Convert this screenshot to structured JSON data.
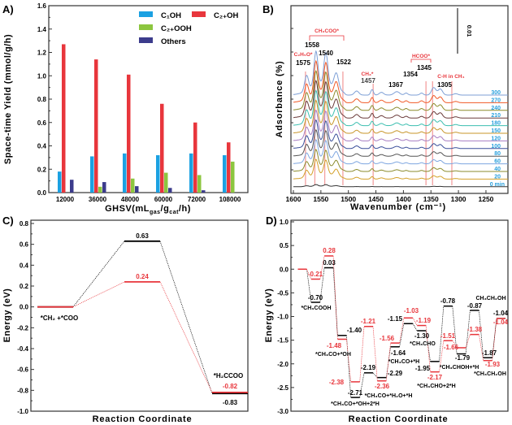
{
  "chart_data": [
    {
      "panel_label": "A)",
      "type": "bar",
      "categories": [
        "12000",
        "36000",
        "48000",
        "60000",
        "72000",
        "108000"
      ],
      "series": [
        {
          "name": "C₁OH",
          "color": "#1ba1e2",
          "values": [
            0.18,
            0.31,
            0.335,
            0.32,
            0.335,
            0.32
          ]
        },
        {
          "name": "C₂₊OH",
          "color": "#e8363c",
          "values": [
            1.27,
            1.14,
            1.01,
            0.76,
            0.6,
            0.43
          ]
        },
        {
          "name": "C₂₊OOH",
          "color": "#8cc63f",
          "values": [
            null,
            0.05,
            0.12,
            0.17,
            0.15,
            0.265
          ]
        },
        {
          "name": "Others",
          "color": "#3c3c8c",
          "values": [
            0.11,
            0.09,
            0.055,
            0.04,
            0.02,
            null
          ]
        }
      ],
      "ylabel": "Space-time Yield (mmol/g/h)",
      "xlabel_parts": [
        {
          "t": "GHSV(mL"
        },
        {
          "t": "gas",
          "sub": true
        },
        {
          "t": "/g"
        },
        {
          "t": "cat",
          "sub": true
        },
        {
          "t": "/h)"
        }
      ],
      "ylim": [
        0,
        1.6
      ],
      "yticks": [
        "0.0",
        "0.2",
        "0.4",
        "0.6",
        "0.8",
        "1.0",
        "1.2",
        "1.4",
        "1.6"
      ],
      "legend": "top-right"
    },
    {
      "panel_label": "B)",
      "type": "line",
      "xlabel": "Wavenumber (cm⁻¹)",
      "ylabel": "Adsorbance (%)",
      "xlim": [
        1600,
        1210
      ],
      "xticks": [
        "1600",
        "1550",
        "1500",
        "1450",
        "1400",
        "1350",
        "1300",
        "1250"
      ],
      "scale_bar": "0.01",
      "series": [
        {
          "name": "300",
          "color": "#7d9fd6"
        },
        {
          "name": "270",
          "color": "#f05a28"
        },
        {
          "name": "240",
          "color": "#8b8b2c"
        },
        {
          "name": "210",
          "color": "#6b3b3b"
        },
        {
          "name": "180",
          "color": "#3dbfb0"
        },
        {
          "name": "150",
          "color": "#c8962a"
        },
        {
          "name": "120",
          "color": "#a67dc2"
        },
        {
          "name": "100",
          "color": "#3a4f9a"
        },
        {
          "name": "80",
          "color": "#555555"
        },
        {
          "name": "60",
          "color": "#7ea6e0"
        },
        {
          "name": "40",
          "color": "#8b8b2c"
        },
        {
          "name": "20",
          "color": "#d4a12a"
        },
        {
          "name": "0 min",
          "color": "#333333"
        }
      ],
      "series_label_color": "#2aa0dd",
      "peak_labels": [
        "1575",
        "1558",
        "1540",
        "1522",
        "1457",
        "1367",
        "1354",
        "1345",
        "1305"
      ],
      "assignments": [
        "C₂H₅O*",
        "CH₃COO*",
        "CH₃*",
        "HCOO*",
        "C-H in CH₄"
      ],
      "annotation_color": "#e8363c"
    },
    {
      "panel_label": "C)",
      "type": "line",
      "ylabel": "Energy (eV)",
      "xlabel": "Reaction Coordinate",
      "ylim": [
        -1.0,
        0.8
      ],
      "yticks": [
        "-1.0",
        "-0.8",
        "-0.6",
        "-0.4",
        "-0.2",
        "0.0",
        "0.2",
        "0.4",
        "0.6",
        "0.8"
      ],
      "series": [
        {
          "color": "#000000",
          "energies": [
            0.0,
            0.63,
            -0.83
          ],
          "labels": [
            "",
            "0.63",
            "-0.83"
          ]
        },
        {
          "color": "#e8363c",
          "energies": [
            0.0,
            0.24,
            -0.82
          ],
          "labels": [
            "",
            "0.24",
            "-0.82"
          ]
        }
      ],
      "state_labels": [
        "*CH₂ +*COO",
        "*H₂CCOO"
      ]
    },
    {
      "panel_label": "D)",
      "type": "line",
      "ylabel": "Energy (eV)",
      "xlabel": "Reaction Coordinate",
      "ylim": [
        -3.0,
        1.0
      ],
      "yticks": [
        "-3.0",
        "-2.5",
        "-2.0",
        "-1.5",
        "-1.0",
        "-0.5",
        "0.0",
        "0.5",
        "1.0"
      ],
      "series": [
        {
          "color": "#000000",
          "energies": [
            0.0,
            -0.7,
            0.03,
            -1.4,
            -2.71,
            -2.19,
            -2.29,
            -1.64,
            -1.15,
            -1.3,
            -1.95,
            -0.78,
            -1.79,
            -0.87,
            -1.87,
            -1.04
          ],
          "labels": [
            "",
            "-0.70",
            "0.03",
            "-1.40",
            "-2.71",
            "-2.19",
            "-2.29",
            "-1.64",
            "-1.15",
            "-1.30",
            "-1.95",
            "-0.78",
            "-1.79",
            "-0.87",
            "-1.87",
            "-1.04"
          ]
        },
        {
          "color": "#e8363c",
          "energies": [
            0.0,
            -0.21,
            0.28,
            -1.48,
            -2.38,
            -1.21,
            -2.36,
            -1.56,
            -1.03,
            -1.19,
            -2.17,
            -1.51,
            -1.66,
            -1.38,
            -1.93,
            -1.04
          ],
          "labels": [
            "",
            "-0.21",
            "0.28",
            "-1.48",
            "-2.38",
            "-1.21",
            "-2.36",
            "-1.56",
            "-1.03",
            "-1.19",
            "-2.17",
            "-1.51",
            "-1.66",
            "-1.38",
            "-1.93",
            "-1.04"
          ]
        }
      ],
      "state_labels": [
        "*CH₃COOH",
        "*CH₃CO+*OH",
        "*CH₃CO+*OH+2*H",
        "*CH₃CO+*H₂O+*H",
        "*CH₃CO+*H",
        "*CH₃CHO",
        "*CH₃CHO+2*H",
        "*CH₃CHOH+*H",
        "*CH₃CH₂OH",
        "CH₃CH₂OH"
      ]
    }
  ]
}
